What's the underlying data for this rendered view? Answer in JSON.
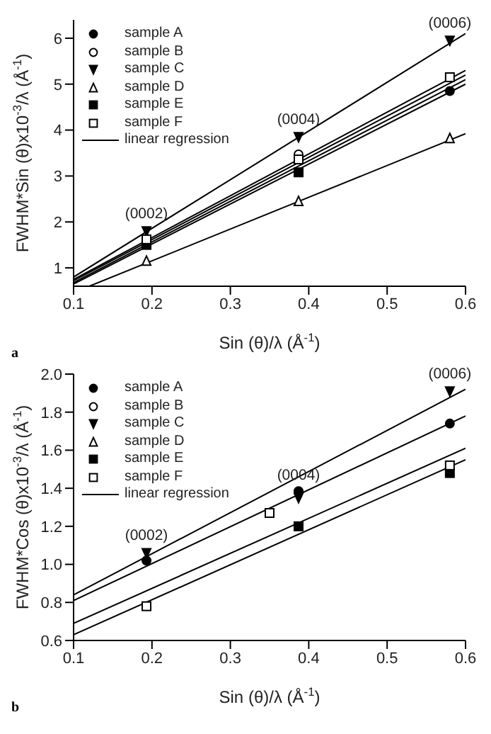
{
  "chart_data": [
    {
      "type": "scatter",
      "xlabel": "Sin (θ)/λ (Å$^{-1}$)",
      "ylabel": "FWHM*Sin (θ)x10$^{-3}$/λ (Å$^{-1}$)",
      "xlim": [
        0.1,
        0.6
      ],
      "xticks": [
        0.1,
        0.2,
        0.3,
        0.4,
        0.5,
        0.6
      ],
      "ylim": [
        0.6,
        6.4
      ],
      "yticks": [
        1,
        2,
        3,
        4,
        5,
        6
      ],
      "grid": false,
      "legend": "top left",
      "annotations": [
        {
          "text": "(0002)",
          "x": 0.193,
          "y": 1.8
        },
        {
          "text": "(0004)",
          "x": 0.387,
          "y": 3.85
        },
        {
          "text": "(0006)",
          "x": 0.58,
          "y": 5.95
        },
        "a"
      ],
      "series": [
        {
          "name": "sample A",
          "marker": "circle",
          "color": "#000000",
          "x": [
            0.58
          ],
          "values": [
            4.85
          ]
        },
        {
          "name": "sample B",
          "marker": "circle",
          "color": "#ffffff",
          "x": [
            0.387
          ],
          "values": [
            3.47
          ]
        },
        {
          "name": "sample C",
          "marker": "triangle-down",
          "color": "#000000",
          "x": [
            0.193,
            0.387,
            0.58
          ],
          "values": [
            1.8,
            3.85,
            5.95
          ]
        },
        {
          "name": "sample D",
          "marker": "triangle",
          "color": "#ffffff",
          "x": [
            0.193,
            0.387,
            0.58
          ],
          "values": [
            1.15,
            2.45,
            3.82
          ]
        },
        {
          "name": "sample E",
          "marker": "square",
          "color": "#000000",
          "x": [
            0.193,
            0.387
          ],
          "values": [
            1.5,
            3.08
          ]
        },
        {
          "name": "sample F",
          "marker": "square",
          "color": "#ffffff",
          "x": [
            0.193,
            0.387,
            0.58
          ],
          "values": [
            1.62,
            3.36,
            5.15
          ]
        },
        {
          "name": "linear regression",
          "type": "line",
          "color": "#000000",
          "x": [
            0.1,
            0.6
          ],
          "values": [
            0.8,
            6.1
          ]
        },
        {
          "type": "line",
          "color": "#000000",
          "x": [
            0.1,
            0.6
          ],
          "values": [
            0.75,
            5.3
          ]
        },
        {
          "type": "line",
          "color": "#000000",
          "x": [
            0.1,
            0.6
          ],
          "values": [
            0.72,
            5.2
          ]
        },
        {
          "type": "line",
          "color": "#000000",
          "x": [
            0.1,
            0.6
          ],
          "values": [
            0.68,
            5.1
          ]
        },
        {
          "type": "line",
          "color": "#000000",
          "x": [
            0.1,
            0.6
          ],
          "values": [
            0.65,
            5.0
          ]
        },
        {
          "type": "line",
          "color": "#000000",
          "x": [
            0.12,
            0.6
          ],
          "values": [
            0.6,
            3.92
          ]
        }
      ]
    },
    {
      "type": "scatter",
      "xlabel": "Sin (θ)/λ (Å$^{-1}$)",
      "ylabel": "FWHM*Cos (θ)x10$^{-3}$/λ (Å$^{-1}$)",
      "xlim": [
        0.1,
        0.6
      ],
      "xticks": [
        0.1,
        0.2,
        0.3,
        0.4,
        0.5,
        0.6
      ],
      "ylim": [
        0.6,
        2.0
      ],
      "yticks": [
        {
          "value": 0.6,
          "label": "0.6"
        },
        {
          "value": 0.8,
          "label": "0.8"
        },
        {
          "value": 1.0,
          "label": "1.0"
        },
        {
          "value": 1.2,
          "label": "1.2"
        },
        {
          "value": 1.4,
          "label": "1.4"
        },
        {
          "value": 1.6,
          "label": "1.6"
        },
        {
          "value": 1.8,
          "label": "1.8"
        },
        {
          "value": 2.0,
          "label": "2.0"
        }
      ],
      "grid": false,
      "legend": "top left",
      "annotations": [
        {
          "text": "(0002)",
          "x": 0.193,
          "y": 1.06
        },
        {
          "text": "(0004)",
          "x": 0.387,
          "y": 1.38
        },
        {
          "text": "(0006)",
          "x": 0.58,
          "y": 1.91
        },
        "b"
      ],
      "series": [
        {
          "name": "sample A",
          "marker": "circle",
          "color": "#000000",
          "x": [
            0.193,
            0.387,
            0.58
          ],
          "values": [
            1.02,
            1.385,
            1.74
          ]
        },
        {
          "name": "sample B",
          "marker": "circle",
          "color": "#ffffff"
        },
        {
          "name": "sample C",
          "marker": "triangle-down",
          "color": "#000000",
          "x": [
            0.193,
            0.387,
            0.58
          ],
          "values": [
            1.06,
            1.35,
            1.91
          ]
        },
        {
          "name": "sample D",
          "marker": "triangle",
          "color": "#ffffff"
        },
        {
          "name": "sample E",
          "marker": "square",
          "color": "#000000",
          "x": [
            0.387,
            0.58
          ],
          "values": [
            1.2,
            1.48
          ]
        },
        {
          "name": "sample F",
          "marker": "square",
          "color": "#ffffff",
          "x": [
            0.193,
            0.35,
            0.58
          ],
          "values": [
            0.78,
            1.27,
            1.52
          ]
        },
        {
          "name": "linear regression",
          "type": "line",
          "color": "#000000",
          "x": [
            0.1,
            0.6
          ],
          "values": [
            0.84,
            1.92
          ]
        },
        {
          "type": "line",
          "color": "#000000",
          "x": [
            0.1,
            0.6
          ],
          "values": [
            0.81,
            1.78
          ]
        },
        {
          "type": "line",
          "color": "#000000",
          "x": [
            0.1,
            0.6
          ],
          "values": [
            0.69,
            1.61
          ]
        },
        {
          "type": "line",
          "color": "#000000",
          "x": [
            0.1,
            0.6
          ],
          "values": [
            0.63,
            1.55
          ]
        }
      ]
    }
  ]
}
